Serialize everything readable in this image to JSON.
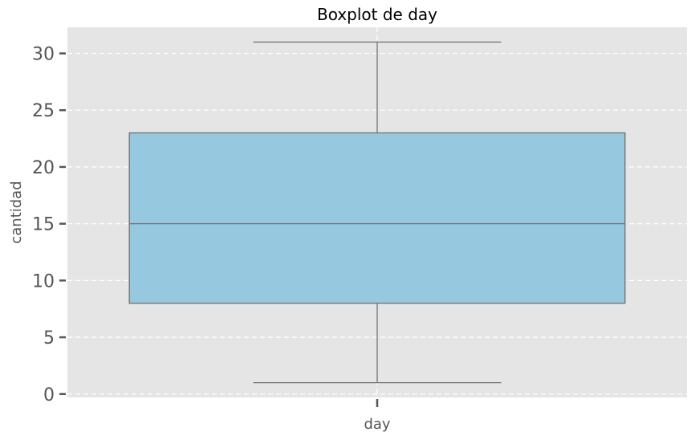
{
  "chart_data": {
    "type": "boxplot",
    "title": "Boxplot de day",
    "xlabel": "day",
    "ylabel": "cantidad",
    "categories": [
      "day"
    ],
    "series": [
      {
        "min": 1,
        "q1": 8,
        "median": 15,
        "q3": 23,
        "max": 31
      }
    ],
    "ylim": [
      -0.3,
      32.3
    ],
    "yticks": [
      0,
      5,
      10,
      15,
      20,
      25,
      30
    ],
    "grid": true,
    "legend": "none"
  },
  "colors": {
    "plot_background": "#e5e5e5",
    "box_fill": "#96c9df",
    "box_edge": "#707070",
    "grid": "#ffffff",
    "text": "#555555",
    "title": "#000000"
  }
}
